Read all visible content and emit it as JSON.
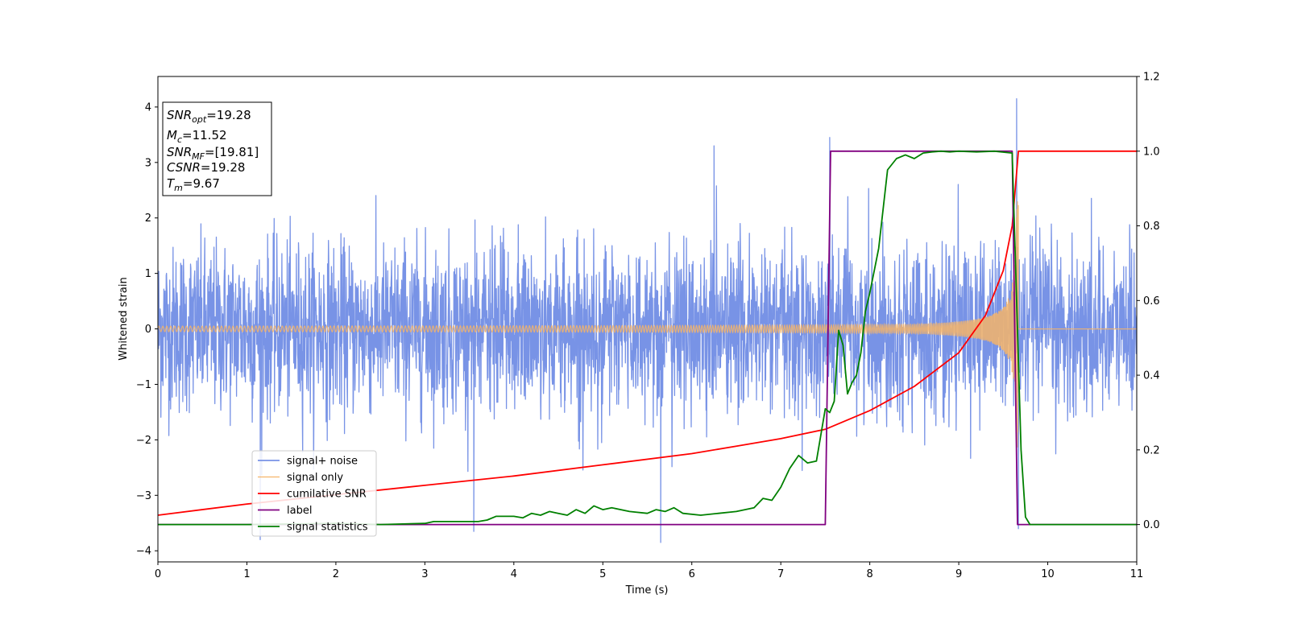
{
  "chart_data": {
    "type": "line",
    "title": "",
    "xlabel": "Time (s)",
    "ylabel": "Whitened strain",
    "xlim": [
      0,
      11
    ],
    "ylim": [
      -4.2,
      4.55
    ],
    "y2lim": [
      -0.1,
      1.2
    ],
    "xticks": [
      "0",
      "1",
      "2",
      "3",
      "4",
      "5",
      "6",
      "7",
      "8",
      "9",
      "10",
      "11"
    ],
    "yticks": [
      "4",
      "3",
      "2",
      "1",
      "0",
      "−1",
      "−2",
      "−3",
      "−4"
    ],
    "y2ticks": [
      "1.2",
      "1.0",
      "0.8",
      "0.6",
      "0.4",
      "0.2",
      "0.0"
    ],
    "grid": false,
    "legend_position": "lower-left",
    "info_box": {
      "position": "top-left",
      "lines": [
        {
          "var": "SNR",
          "sub": "opt",
          "value": "=19.28"
        },
        {
          "var": "M",
          "sub": "c",
          "value": "=11.52"
        },
        {
          "var": "SNR",
          "sub": "MF",
          "value": "=[19.81]"
        },
        {
          "var": "CSNR",
          "sub": "",
          "value": "=19.28"
        },
        {
          "var": "T",
          "sub": "m",
          "value": "=9.67"
        }
      ]
    },
    "series": [
      {
        "name": "signal+ noise",
        "color": "#7893e6",
        "axis": "left",
        "kind": "noise-band",
        "baseline_std": 0.75,
        "typical_peak": 2.4,
        "spikes": [
          {
            "x": 7.55,
            "y": 3.45
          },
          {
            "x": 9.65,
            "y": 4.15
          },
          {
            "x": 6.25,
            "y": 3.3
          },
          {
            "x": 5.65,
            "y": -3.85
          },
          {
            "x": 1.15,
            "y": -3.8
          },
          {
            "x": 3.55,
            "y": -3.65
          },
          {
            "x": 9.67,
            "y": -3.6
          }
        ]
      },
      {
        "name": "signal only",
        "color": "#f5b469",
        "axis": "left",
        "kind": "chirp",
        "merger_time": 9.67,
        "amplitude_start": 0.05,
        "amplitude_peak": 2.3,
        "after_merger": 0
      },
      {
        "name": "cumilative SNR",
        "color": "#ff0000",
        "axis": "right",
        "x": [
          0,
          1,
          2,
          3,
          4,
          5,
          6,
          6.5,
          7,
          7.5,
          8,
          8.5,
          9,
          9.3,
          9.5,
          9.6,
          9.67,
          9.68,
          11
        ],
        "y": [
          0.025,
          0.055,
          0.08,
          0.105,
          0.13,
          0.16,
          0.19,
          0.21,
          0.23,
          0.255,
          0.305,
          0.37,
          0.46,
          0.56,
          0.68,
          0.8,
          1.0,
          1.0,
          1.0
        ]
      },
      {
        "name": "label",
        "color": "#800080",
        "axis": "right",
        "x": [
          0,
          7.5,
          7.56,
          9.6,
          9.66,
          11
        ],
        "y": [
          0.0,
          0.0,
          1.0,
          1.0,
          0.0,
          0.0
        ]
      },
      {
        "name": "signal statistics",
        "color": "#008000",
        "axis": "right",
        "x": [
          0,
          1,
          2,
          2.5,
          3,
          3.1,
          3.4,
          3.6,
          3.7,
          3.8,
          4.0,
          4.1,
          4.2,
          4.3,
          4.4,
          4.5,
          4.6,
          4.7,
          4.8,
          4.9,
          5.0,
          5.1,
          5.3,
          5.5,
          5.6,
          5.7,
          5.8,
          5.9,
          6.1,
          6.3,
          6.5,
          6.7,
          6.8,
          6.9,
          7.0,
          7.1,
          7.2,
          7.3,
          7.4,
          7.5,
          7.55,
          7.6,
          7.65,
          7.7,
          7.75,
          7.8,
          7.85,
          7.9,
          7.95,
          8.0,
          8.05,
          8.1,
          8.2,
          8.3,
          8.4,
          8.5,
          8.6,
          8.7,
          8.8,
          8.9,
          9.0,
          9.2,
          9.4,
          9.6,
          9.65,
          9.7,
          9.75,
          9.8,
          10,
          11
        ],
        "y": [
          0.0,
          0.0,
          0.003,
          0.0,
          0.003,
          0.008,
          0.008,
          0.008,
          0.012,
          0.022,
          0.022,
          0.018,
          0.03,
          0.025,
          0.035,
          0.03,
          0.025,
          0.04,
          0.03,
          0.05,
          0.04,
          0.045,
          0.035,
          0.03,
          0.04,
          0.035,
          0.045,
          0.03,
          0.025,
          0.03,
          0.035,
          0.045,
          0.07,
          0.065,
          0.1,
          0.15,
          0.185,
          0.165,
          0.17,
          0.31,
          0.3,
          0.33,
          0.52,
          0.48,
          0.35,
          0.38,
          0.4,
          0.46,
          0.57,
          0.62,
          0.68,
          0.74,
          0.95,
          0.98,
          0.99,
          0.98,
          0.995,
          0.998,
          1.0,
          0.998,
          1.0,
          0.998,
          1.0,
          0.995,
          0.6,
          0.2,
          0.02,
          0.0,
          0.0,
          0.0
        ]
      }
    ]
  }
}
